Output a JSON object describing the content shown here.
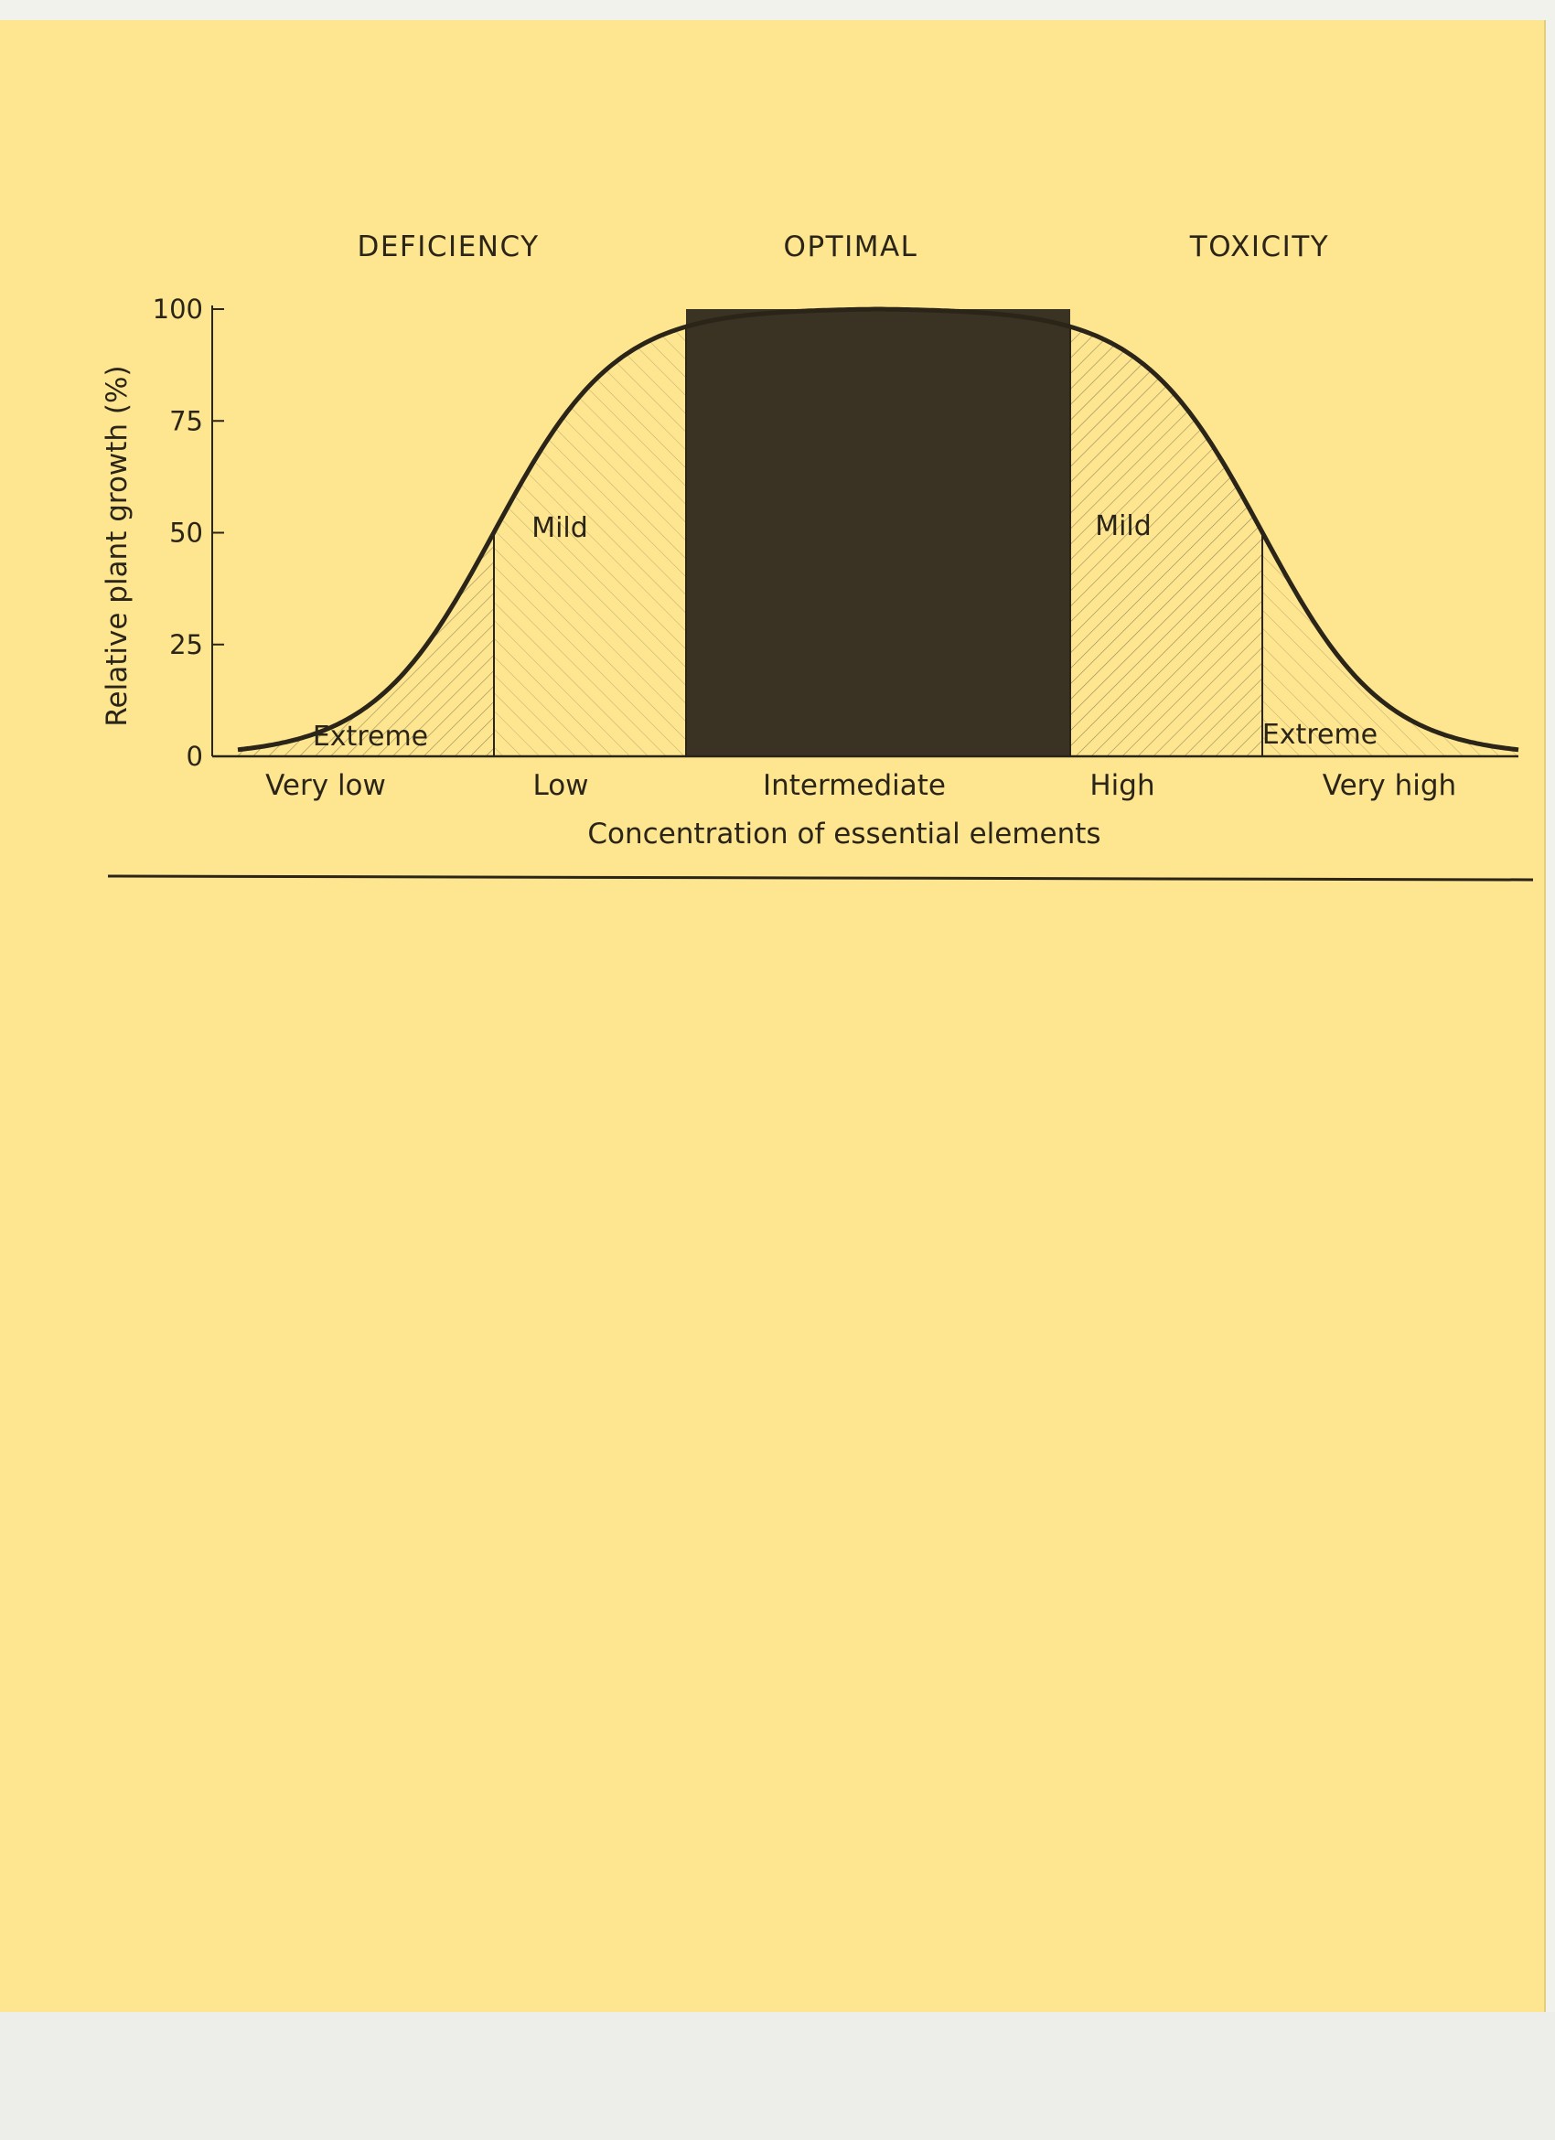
{
  "chart_data": {
    "type": "area",
    "title": "",
    "region_labels": [
      "DEFICIENCY",
      "OPTIMAL",
      "TOXICITY"
    ],
    "xlabel": "Concentration of essential elements",
    "ylabel": "Relative plant growth (%)",
    "ylim": [
      0,
      100
    ],
    "y_ticks": [
      0,
      25,
      50,
      75,
      100
    ],
    "categories": [
      "Very low",
      "Low",
      "Intermediate",
      "High",
      "Very high"
    ],
    "zone_labels": [
      "Extreme",
      "Mild",
      "Mild",
      "Extreme"
    ],
    "grid": false,
    "curve": {
      "x": [
        0,
        0.5,
        1,
        1.5,
        2,
        2.5,
        3,
        3.5,
        4,
        4.5,
        5
      ],
      "y": [
        0,
        10,
        50,
        90,
        100,
        100,
        100,
        90,
        50,
        10,
        0
      ]
    },
    "colors": {
      "paper": "#fde68f",
      "ink": "#2b2418",
      "optimal_fill": "#3a3323",
      "hatch": "#6e6144"
    }
  }
}
